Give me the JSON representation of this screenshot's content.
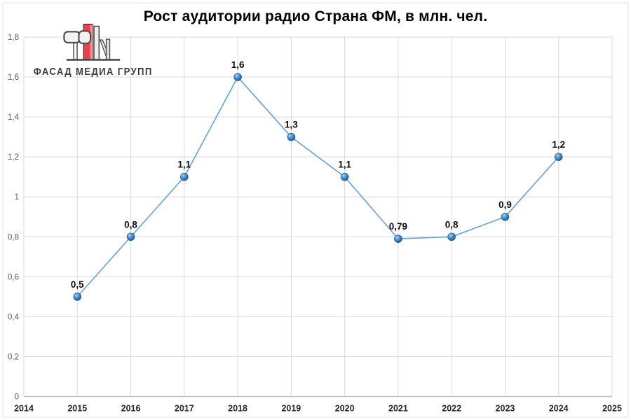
{
  "header": {
    "title": "Рост аудитории радио Страна ФМ, в млн. чел.",
    "logo": {
      "text": "ФАСАД МЕДИА ГРУПП",
      "accent_color": "#e8404e"
    }
  },
  "chart_data": {
    "type": "line",
    "title": "Рост аудитории радио Страна ФМ, в млн. чел.",
    "x": [
      2015,
      2016,
      2017,
      2018,
      2019,
      2020,
      2021,
      2022,
      2023,
      2024
    ],
    "values": [
      0.5,
      0.8,
      1.1,
      1.6,
      1.3,
      1.1,
      0.79,
      0.8,
      0.9,
      1.2
    ],
    "point_labels": [
      "0,5",
      "0,8",
      "1,1",
      "1,6",
      "1,3",
      "1,1",
      "0,79",
      "0,8",
      "0,9",
      "1,2"
    ],
    "xlim": [
      2014,
      2025
    ],
    "ylim": [
      0,
      1.8
    ],
    "x_ticks": [
      {
        "v": 2014,
        "label": "2014"
      },
      {
        "v": 2015,
        "label": "2015"
      },
      {
        "v": 2016,
        "label": "2016"
      },
      {
        "v": 2017,
        "label": "2017"
      },
      {
        "v": 2018,
        "label": "2018"
      },
      {
        "v": 2019,
        "label": "2019"
      },
      {
        "v": 2020,
        "label": "2020"
      },
      {
        "v": 2021,
        "label": "2021"
      },
      {
        "v": 2022,
        "label": "2022"
      },
      {
        "v": 2023,
        "label": "2023"
      },
      {
        "v": 2024,
        "label": "2024"
      },
      {
        "v": 2025,
        "label": "2025"
      }
    ],
    "y_ticks": [
      {
        "v": 0,
        "label": "0"
      },
      {
        "v": 0.2,
        "label": "0,2"
      },
      {
        "v": 0.4,
        "label": "0,4"
      },
      {
        "v": 0.6,
        "label": "0,6"
      },
      {
        "v": 0.8,
        "label": "0,8"
      },
      {
        "v": 1,
        "label": "1"
      },
      {
        "v": 1.2,
        "label": "1,2"
      },
      {
        "v": 1.4,
        "label": "1,4"
      },
      {
        "v": 1.6,
        "label": "1,6"
      },
      {
        "v": 1.8,
        "label": "1,8"
      }
    ],
    "grid": true,
    "legend": "none",
    "colors": {
      "line": "#6BA4DB",
      "marker_fill": "#3F87C9",
      "marker_highlight": "#A6D0EF",
      "marker_edge": "#1F5D96",
      "grid": "#D9D9D9",
      "axis_bottom": "#BDBDBD",
      "point_label": "#0d0d0d",
      "tick_x": "#262626",
      "tick_y": "#595959"
    }
  }
}
